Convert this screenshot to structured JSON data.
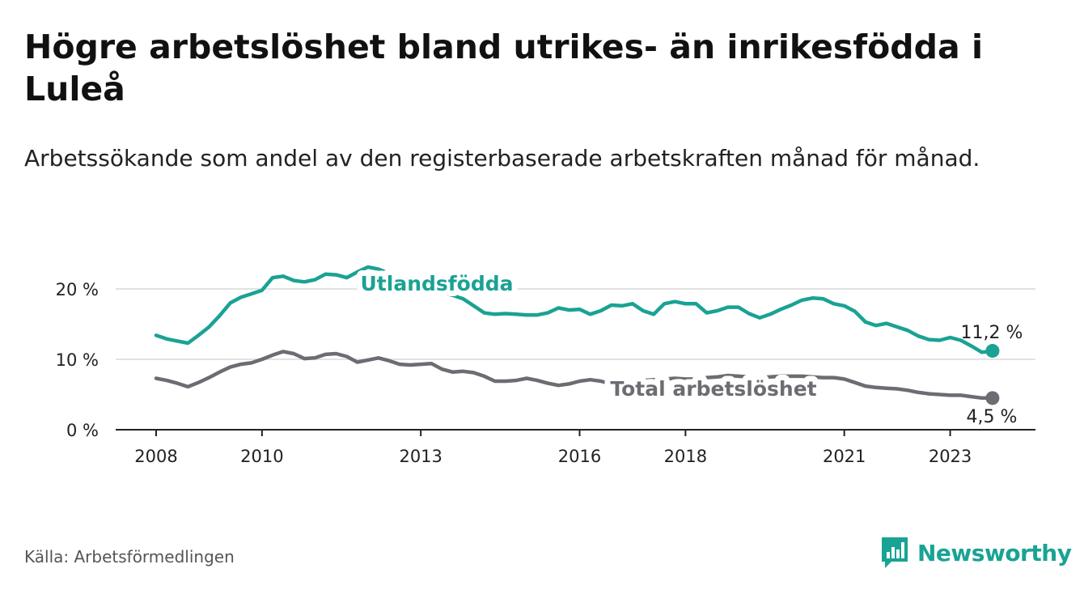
{
  "title": "Högre arbetslöshet bland utrikes- än inrikesfödda i Luleå",
  "subtitle": "Arbetssökande som andel av den registerbaserade arbetskraften månad för månad.",
  "source": "Källa: Arbetsförmedlingen",
  "brand": {
    "name": "Newsworthy",
    "icon": "newsworthy-logo-icon"
  },
  "colors": {
    "utlandsfodda": "#1aa294",
    "total": "#6e6b72",
    "grid": "#d9d9d9",
    "axis": "#222222"
  },
  "chart_data": {
    "type": "line",
    "title": "Högre arbetslöshet bland utrikes- än inrikesfödda i Luleå",
    "xlabel": "",
    "ylabel": "",
    "xlim": [
      2008,
      2024.6
    ],
    "ylim": [
      0,
      20
    ],
    "x_ticks": [
      2008,
      2010,
      2013,
      2016,
      2018,
      2021,
      2023
    ],
    "x_tick_labels": [
      "2008",
      "2010",
      "2013",
      "2016",
      "2018",
      "2021",
      "2023"
    ],
    "y_ticks": [
      0,
      10,
      20
    ],
    "y_tick_labels": [
      "0 %",
      "10 %",
      "20 %"
    ],
    "grid": true,
    "series": [
      {
        "name": "Utlandsfödda",
        "label": "Utlandsfödda",
        "end_label": "11,2 %",
        "end_value": 11.2,
        "x": [
          2008.0,
          2008.2,
          2008.4,
          2008.6,
          2008.8,
          2009.0,
          2009.2,
          2009.4,
          2009.6,
          2009.8,
          2010.0,
          2010.2,
          2010.4,
          2010.6,
          2010.8,
          2011.0,
          2011.2,
          2011.4,
          2011.6,
          2011.8,
          2012.0,
          2012.2,
          2012.4,
          2012.6,
          2012.8,
          2013.0,
          2013.2,
          2013.4,
          2013.6,
          2013.8,
          2014.0,
          2014.2,
          2014.4,
          2014.6,
          2014.8,
          2015.0,
          2015.2,
          2015.4,
          2015.6,
          2015.8,
          2016.0,
          2016.2,
          2016.4,
          2016.6,
          2016.8,
          2017.0,
          2017.2,
          2017.4,
          2017.6,
          2017.8,
          2018.0,
          2018.2,
          2018.4,
          2018.6,
          2018.8,
          2019.0,
          2019.2,
          2019.4,
          2019.6,
          2019.8,
          2020.0,
          2020.2,
          2020.4,
          2020.6,
          2020.8,
          2021.0,
          2021.2,
          2021.4,
          2021.6,
          2021.8,
          2022.0,
          2022.2,
          2022.4,
          2022.6,
          2022.8,
          2023.0,
          2023.2,
          2023.4,
          2023.6,
          2023.8
        ],
        "values": [
          13.4,
          12.9,
          12.6,
          12.3,
          13.4,
          14.6,
          16.2,
          18.0,
          18.8,
          19.3,
          19.8,
          21.6,
          21.8,
          21.2,
          21.0,
          21.3,
          22.1,
          22.0,
          21.6,
          22.4,
          23.1,
          22.8,
          22.2,
          21.6,
          21.0,
          20.4,
          19.9,
          19.5,
          19.1,
          18.6,
          17.6,
          16.6,
          16.4,
          16.5,
          16.4,
          16.3,
          16.3,
          16.6,
          17.3,
          17.0,
          17.1,
          16.4,
          16.9,
          17.7,
          17.6,
          17.9,
          16.9,
          16.4,
          17.9,
          18.2,
          17.9,
          17.9,
          16.6,
          16.9,
          17.4,
          17.4,
          16.5,
          15.9,
          16.4,
          17.1,
          17.7,
          18.4,
          18.7,
          18.6,
          17.9,
          17.6,
          16.8,
          15.3,
          14.8,
          15.1,
          14.6,
          14.1,
          13.3,
          12.8,
          12.7,
          13.1,
          12.7,
          11.9,
          11.0,
          11.2
        ]
      },
      {
        "name": "Total arbetslöshet",
        "label": "Total arbetslöshet",
        "end_label": "4,5 %",
        "end_value": 4.5,
        "x": [
          2008.0,
          2008.2,
          2008.4,
          2008.6,
          2008.8,
          2009.0,
          2009.2,
          2009.4,
          2009.6,
          2009.8,
          2010.0,
          2010.2,
          2010.4,
          2010.6,
          2010.8,
          2011.0,
          2011.2,
          2011.4,
          2011.6,
          2011.8,
          2012.0,
          2012.2,
          2012.4,
          2012.6,
          2012.8,
          2013.0,
          2013.2,
          2013.4,
          2013.6,
          2013.8,
          2014.0,
          2014.2,
          2014.4,
          2014.6,
          2014.8,
          2015.0,
          2015.2,
          2015.4,
          2015.6,
          2015.8,
          2016.0,
          2016.2,
          2016.4,
          2016.6,
          2016.8,
          2017.0,
          2017.2,
          2017.4,
          2017.6,
          2017.8,
          2018.0,
          2018.2,
          2018.4,
          2018.6,
          2018.8,
          2019.0,
          2019.2,
          2019.4,
          2019.6,
          2019.8,
          2020.0,
          2020.2,
          2020.4,
          2020.6,
          2020.8,
          2021.0,
          2021.2,
          2021.4,
          2021.6,
          2021.8,
          2022.0,
          2022.2,
          2022.4,
          2022.6,
          2022.8,
          2023.0,
          2023.2,
          2023.4,
          2023.6,
          2023.8
        ],
        "values": [
          7.3,
          7.0,
          6.6,
          6.1,
          6.7,
          7.4,
          8.2,
          8.9,
          9.3,
          9.5,
          10.0,
          10.6,
          11.1,
          10.8,
          10.1,
          10.2,
          10.7,
          10.8,
          10.4,
          9.6,
          9.9,
          10.2,
          9.8,
          9.3,
          9.2,
          9.3,
          9.4,
          8.6,
          8.2,
          8.3,
          8.1,
          7.6,
          6.9,
          6.9,
          7.0,
          7.3,
          7.0,
          6.6,
          6.3,
          6.5,
          6.9,
          7.1,
          6.9,
          6.5,
          6.6,
          6.8,
          7.0,
          7.1,
          7.2,
          7.3,
          7.2,
          7.2,
          7.4,
          7.5,
          7.7,
          7.6,
          7.5,
          7.4,
          7.5,
          7.6,
          7.6,
          7.6,
          7.5,
          7.4,
          7.4,
          7.2,
          6.7,
          6.2,
          6.0,
          5.9,
          5.8,
          5.6,
          5.3,
          5.1,
          5.0,
          4.9,
          4.9,
          4.7,
          4.5,
          4.5
        ]
      }
    ]
  }
}
